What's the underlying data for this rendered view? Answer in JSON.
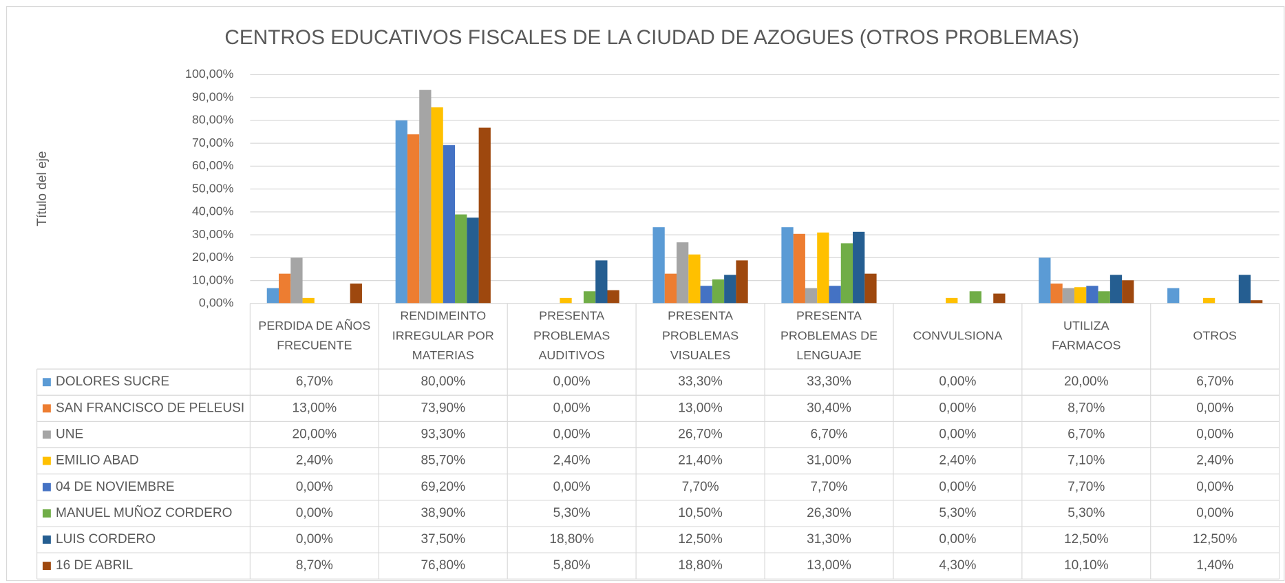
{
  "chart_data": {
    "type": "bar",
    "title": "CENTROS EDUCATIVOS FISCALES DE LA CIUDAD DE AZOGUES (OTROS PROBLEMAS)",
    "y_label": "Título del eje",
    "categories": [
      "PERDIDA DE AÑOS FRECUENTE",
      "RENDIMEINTO IRREGULAR POR MATERIAS",
      "PRESENTA PROBLEMAS AUDITIVOS",
      "PRESENTA PROBLEMAS VISUALES",
      "PRESENTA PROBLEMAS DE LENGUAJE",
      "CONVULSIONA",
      "UTILIZA FARMACOS",
      "OTROS"
    ],
    "series": [
      {
        "name": "DOLORES SUCRE",
        "color": "#5b9bd5",
        "values": [
          6.7,
          80,
          0,
          33.3,
          33.3,
          0,
          20,
          6.7
        ],
        "value_labels": [
          "6,70%",
          "80,00%",
          "0,00%",
          "33,30%",
          "33,30%",
          "0,00%",
          "20,00%",
          "6,70%"
        ]
      },
      {
        "name": "SAN FRANCISCO DE PELEUSI",
        "color": "#ed7d31",
        "values": [
          13,
          73.9,
          0,
          13,
          30.4,
          0,
          8.7,
          0
        ],
        "value_labels": [
          "13,00%",
          "73,90%",
          "0,00%",
          "13,00%",
          "30,40%",
          "0,00%",
          "8,70%",
          "0,00%"
        ]
      },
      {
        "name": "UNE",
        "color": "#a5a5a5",
        "values": [
          20,
          93.3,
          0,
          26.7,
          6.7,
          0,
          6.7,
          0
        ],
        "value_labels": [
          "20,00%",
          "93,30%",
          "0,00%",
          "26,70%",
          "6,70%",
          "0,00%",
          "6,70%",
          "0,00%"
        ]
      },
      {
        "name": "EMILIO ABAD",
        "color": "#ffc000",
        "values": [
          2.4,
          85.7,
          2.4,
          21.4,
          31,
          2.4,
          7.1,
          2.4
        ],
        "value_labels": [
          "2,40%",
          "85,70%",
          "2,40%",
          "21,40%",
          "31,00%",
          "2,40%",
          "7,10%",
          "2,40%"
        ]
      },
      {
        "name": "04 DE NOVIEMBRE",
        "color": "#4472c4",
        "values": [
          0,
          69.2,
          0,
          7.7,
          7.7,
          0,
          7.7,
          0
        ],
        "value_labels": [
          "0,00%",
          "69,20%",
          "0,00%",
          "7,70%",
          "7,70%",
          "0,00%",
          "7,70%",
          "0,00%"
        ]
      },
      {
        "name": "MANUEL MUÑOZ CORDERO",
        "color": "#70ad47",
        "values": [
          0,
          38.9,
          5.3,
          10.5,
          26.3,
          5.3,
          5.3,
          0
        ],
        "value_labels": [
          "0,00%",
          "38,90%",
          "5,30%",
          "10,50%",
          "26,30%",
          "5,30%",
          "5,30%",
          "0,00%"
        ]
      },
      {
        "name": "LUIS CORDERO",
        "color": "#255e91",
        "values": [
          0,
          37.5,
          18.8,
          12.5,
          31.3,
          0,
          12.5,
          12.5
        ],
        "value_labels": [
          "0,00%",
          "37,50%",
          "18,80%",
          "12,50%",
          "31,30%",
          "0,00%",
          "12,50%",
          "12,50%"
        ]
      },
      {
        "name": "16 DE ABRIL",
        "color": "#9e480e",
        "values": [
          8.7,
          76.8,
          5.8,
          18.8,
          13,
          4.3,
          10.1,
          1.4
        ],
        "value_labels": [
          "8,70%",
          "76,80%",
          "5,80%",
          "18,80%",
          "13,00%",
          "4,30%",
          "10,10%",
          "1,40%"
        ]
      }
    ],
    "ylim": [
      0,
      100
    ],
    "yticks": [
      {
        "value": 0,
        "label": "0,00%"
      },
      {
        "value": 10,
        "label": "10,00%"
      },
      {
        "value": 20,
        "label": "20,00%"
      },
      {
        "value": 30,
        "label": "30,00%"
      },
      {
        "value": 40,
        "label": "40,00%"
      },
      {
        "value": 50,
        "label": "50,00%"
      },
      {
        "value": 60,
        "label": "60,00%"
      },
      {
        "value": 70,
        "label": "70,00%"
      },
      {
        "value": 80,
        "label": "80,00%"
      },
      {
        "value": 90,
        "label": "90,00%"
      },
      {
        "value": 100,
        "label": "100,00%"
      }
    ],
    "grid": true
  }
}
